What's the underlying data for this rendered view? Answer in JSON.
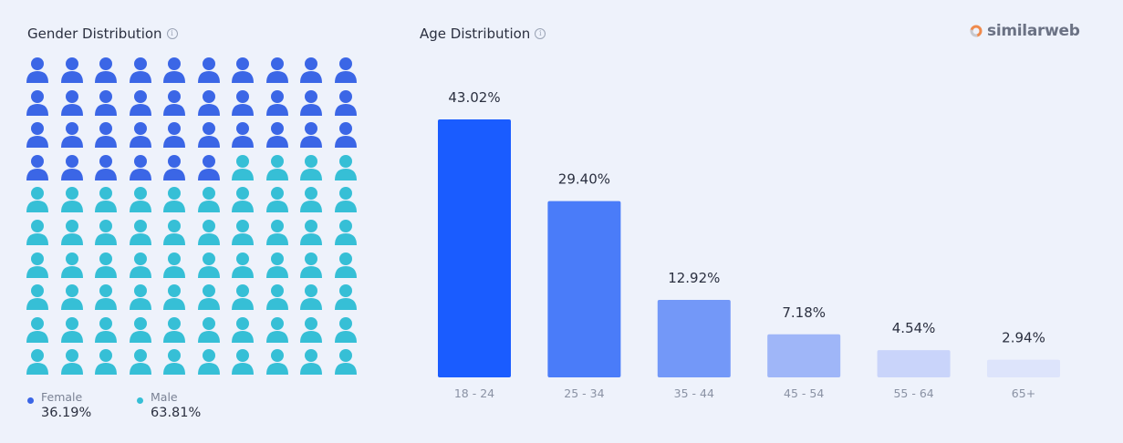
{
  "brand": {
    "name": "similarweb",
    "logo_icon": "similarweb-logo-icon",
    "logo_color": "#ef8a4c"
  },
  "info_icon": "info-icon",
  "gender": {
    "title": "Gender Distribution",
    "female": {
      "label": "Female",
      "value": "36.19%",
      "percent": 36.19,
      "color": "#3b66e6"
    },
    "male": {
      "label": "Male",
      "value": "63.81%",
      "percent": 63.81,
      "color": "#36bfd6"
    }
  },
  "age": {
    "title": "Age Distribution"
  },
  "chart_data": [
    {
      "type": "waffle",
      "title": "Gender Distribution",
      "grid": [
        10,
        10
      ],
      "series": [
        {
          "name": "Female",
          "value": 36.19,
          "color": "#3b66e6"
        },
        {
          "name": "Male",
          "value": 63.81,
          "color": "#36bfd6"
        }
      ]
    },
    {
      "type": "bar",
      "title": "Age Distribution",
      "categories": [
        "18 - 24",
        "25 - 34",
        "35 - 44",
        "45 - 54",
        "55 - 64",
        "65+"
      ],
      "values": [
        43.02,
        29.4,
        12.92,
        7.18,
        4.54,
        2.94
      ],
      "data_labels": [
        "43.02%",
        "29.40%",
        "12.92%",
        "7.18%",
        "4.54%",
        "2.94%"
      ],
      "colors": [
        "#1a5cff",
        "#4a7cf9",
        "#7398f8",
        "#9fb6f8",
        "#c9d4fa",
        "#dde4fb"
      ],
      "ylim": [
        0,
        43.02
      ],
      "grid": false
    }
  ]
}
